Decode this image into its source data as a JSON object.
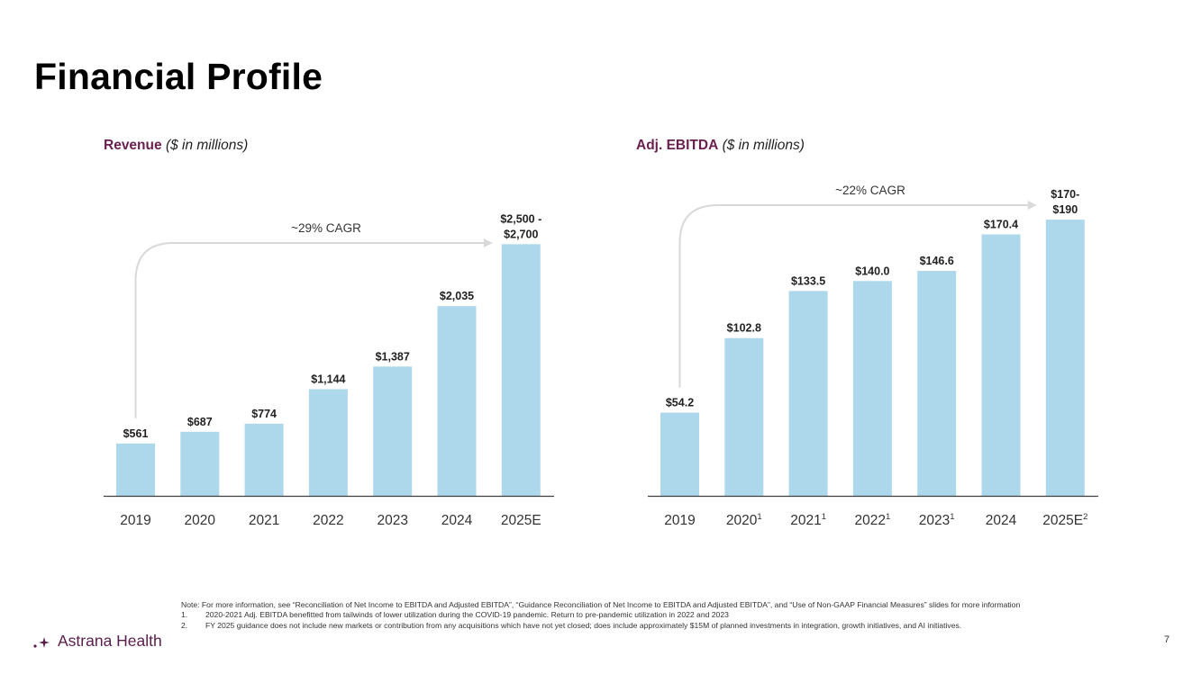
{
  "page": {
    "title": "Financial Profile",
    "page_number": "7",
    "logo_text": "Astrana Health",
    "colors": {
      "bar": "#add7ea",
      "accent": "#6b1f4f",
      "arrow": "#d9d9d9",
      "axis": "#404040"
    }
  },
  "revenue_title": {
    "bold": "Revenue",
    "italic": "($ in millions)"
  },
  "ebitda_title": {
    "bold": "Adj. EBITDA",
    "italic": "($ in millions)"
  },
  "chart_data": [
    {
      "type": "bar",
      "title": "Revenue ($ in millions)",
      "categories": [
        "2019",
        "2020",
        "2021",
        "2022",
        "2023",
        "2024",
        "2025E"
      ],
      "category_superscripts": [
        "",
        "",
        "",
        "",
        "",
        "",
        ""
      ],
      "values": [
        561,
        687,
        774,
        1144,
        1387,
        2035,
        2700
      ],
      "data_labels": [
        [
          "$561"
        ],
        [
          "$687"
        ],
        [
          "$774"
        ],
        [
          "$1,144"
        ],
        [
          "$1,387"
        ],
        [
          "$2,035"
        ],
        [
          "$2,500 -",
          "$2,700"
        ]
      ],
      "annotation": "~29% CAGR",
      "ymax": 2800,
      "xlabel": "",
      "ylabel": ""
    },
    {
      "type": "bar",
      "title": "Adj. EBITDA ($ in millions)",
      "categories": [
        "2019",
        "2020",
        "2021",
        "2022",
        "2023",
        "2024",
        "2025E"
      ],
      "category_superscripts": [
        "",
        "1",
        "1",
        "1",
        "1",
        "",
        "2"
      ],
      "values": [
        54.2,
        102.8,
        133.5,
        140.0,
        146.6,
        170.4,
        180
      ],
      "data_labels": [
        [
          "$54.2"
        ],
        [
          "$102.8"
        ],
        [
          "$133.5"
        ],
        [
          "$140.0"
        ],
        [
          "$146.6"
        ],
        [
          "$170.4"
        ],
        [
          "$170-",
          "$190"
        ]
      ],
      "annotation": "~22% CAGR",
      "ymax": 200,
      "xlabel": "",
      "ylabel": ""
    }
  ],
  "notes": {
    "main": "Note: For more information, see “Reconciliation of Net Income to EBITDA and Adjusted EBITDA”, “Guidance Reconciliation of Net Income to EBITDA and Adjusted EBITDA”, and “Use of Non-GAAP Financial Measures” slides for more information",
    "items": [
      {
        "num": "1.",
        "text": "2020-2021 Adj. EBITDA benefitted from tailwinds of lower utilization during the COVID-19 pandemic.  Return to pre-pandemic utilization in 2022 and 2023"
      },
      {
        "num": "2.",
        "text": "FY 2025 guidance does not include new markets or contribution from any acquisitions which have not yet closed; does include approximately $15M of planned investments in integration, growth initiatives, and AI initiatives."
      }
    ]
  }
}
